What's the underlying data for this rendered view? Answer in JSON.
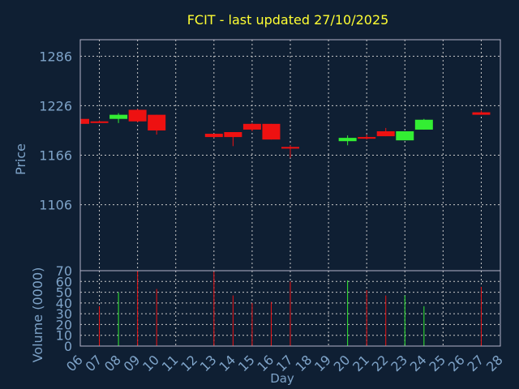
{
  "title": "FCIT - last updated 27/10/2025",
  "colors": {
    "background": "#0f1f33",
    "frame": "#b3b3c8",
    "grid": "#c8c8c8",
    "text": "#7ea3c8",
    "title": "#ffff33",
    "up": "#33ee33",
    "down": "#ee1111"
  },
  "chart_data": [
    {
      "type": "candlestick",
      "ylabel": "Price",
      "ylim": [
        1026,
        1306
      ],
      "yticks": [
        1106,
        1166,
        1226,
        1286
      ],
      "grid": true,
      "candles": [
        {
          "day": "06",
          "open": 1210,
          "high": 1210,
          "low": 1204,
          "close": 1204
        },
        {
          "day": "07",
          "open": 1207,
          "high": 1208,
          "low": 1205,
          "close": 1206
        },
        {
          "day": "08",
          "open": 1210,
          "high": 1217,
          "low": 1205,
          "close": 1215
        },
        {
          "day": "09",
          "open": 1221,
          "high": 1222,
          "low": 1206,
          "close": 1207
        },
        {
          "day": "10",
          "open": 1215,
          "high": 1215,
          "low": 1191,
          "close": 1196
        },
        {
          "day": "13",
          "open": 1192,
          "high": 1192,
          "low": 1187,
          "close": 1188
        },
        {
          "day": "14",
          "open": 1194,
          "high": 1194,
          "low": 1177,
          "close": 1188
        },
        {
          "day": "15",
          "open": 1204,
          "high": 1205,
          "low": 1195,
          "close": 1197
        },
        {
          "day": "16",
          "open": 1204,
          "high": 1204,
          "low": 1185,
          "close": 1185
        },
        {
          "day": "17",
          "open": 1176,
          "high": 1178,
          "low": 1163,
          "close": 1175
        },
        {
          "day": "20",
          "open": 1183,
          "high": 1190,
          "low": 1178,
          "close": 1187
        },
        {
          "day": "21",
          "open": 1188,
          "high": 1191,
          "low": 1185,
          "close": 1186
        },
        {
          "day": "22",
          "open": 1195,
          "high": 1199,
          "low": 1189,
          "close": 1189
        },
        {
          "day": "23",
          "open": 1184,
          "high": 1195,
          "low": 1184,
          "close": 1195
        },
        {
          "day": "24",
          "open": 1197,
          "high": 1210,
          "low": 1197,
          "close": 1209
        },
        {
          "day": "27",
          "open": 1218,
          "high": 1220,
          "low": 1215,
          "close": 1215
        }
      ]
    },
    {
      "type": "bar",
      "ylabel": "Volume (0000)",
      "xlabel": "Day",
      "ylim": [
        0,
        70
      ],
      "yticks": [
        0,
        10,
        20,
        30,
        40,
        50,
        60,
        70
      ],
      "grid": true,
      "x_tick_labels": [
        "06",
        "07",
        "08",
        "09",
        "10",
        "11",
        "12",
        "13",
        "14",
        "15",
        "16",
        "17",
        "18",
        "19",
        "20",
        "21",
        "22",
        "23",
        "24",
        "25",
        "26",
        "27",
        "28"
      ],
      "bars": [
        {
          "day": "07",
          "value": 37,
          "direction": "down"
        },
        {
          "day": "08",
          "value": 50,
          "direction": "up"
        },
        {
          "day": "09",
          "value": 70,
          "direction": "down"
        },
        {
          "day": "10",
          "value": 53,
          "direction": "down"
        },
        {
          "day": "13",
          "value": 69,
          "direction": "down"
        },
        {
          "day": "14",
          "value": 47,
          "direction": "down"
        },
        {
          "day": "15",
          "value": 40,
          "direction": "down"
        },
        {
          "day": "16",
          "value": 41,
          "direction": "down"
        },
        {
          "day": "17",
          "value": 60,
          "direction": "down"
        },
        {
          "day": "20",
          "value": 61,
          "direction": "up"
        },
        {
          "day": "21",
          "value": 52,
          "direction": "down"
        },
        {
          "day": "22",
          "value": 47,
          "direction": "down"
        },
        {
          "day": "23",
          "value": 47,
          "direction": "up"
        },
        {
          "day": "24",
          "value": 37,
          "direction": "up"
        },
        {
          "day": "27",
          "value": 55,
          "direction": "down"
        }
      ]
    }
  ]
}
